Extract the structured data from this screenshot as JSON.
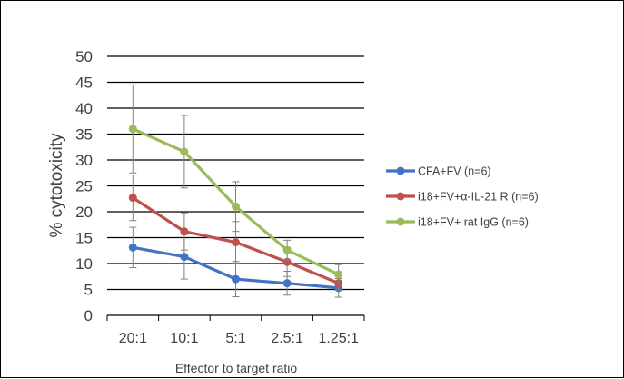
{
  "chart_data": {
    "type": "line",
    "title": "",
    "xlabel": "Effector to target ratio",
    "ylabel": "% cytotoxicity",
    "categories": [
      "20:1",
      "10:1",
      "5:1",
      "2.5:1",
      "1.25:1"
    ],
    "ylim": [
      0,
      50
    ],
    "yticks": [
      "0",
      "5",
      "10",
      "15",
      "20",
      "25",
      "30",
      "35",
      "40",
      "45",
      "50"
    ],
    "grid": true,
    "legend_position": "right",
    "series": [
      {
        "name": "CFA+FV (n=6)",
        "color": "#4472C4",
        "values": [
          13.1,
          11.3,
          7.0,
          6.2,
          5.3
        ],
        "error": [
          3.9,
          4.3,
          3.4,
          2.3,
          1.8
        ]
      },
      {
        "name": "i18+FV+α-IL-21 R (n=6)",
        "color": "#C0504D",
        "values": [
          22.7,
          16.2,
          14.1,
          10.3,
          6.2
        ],
        "error": [
          4.4,
          3.6,
          4.0,
          2.8,
          1.3
        ]
      },
      {
        "name": "i18+FV+ rat IgG (n=6)",
        "color": "#9BBB59",
        "values": [
          36.0,
          31.6,
          21.0,
          12.6,
          7.9
        ],
        "error": [
          8.5,
          7.0,
          4.8,
          1.9,
          1.9
        ]
      }
    ]
  }
}
